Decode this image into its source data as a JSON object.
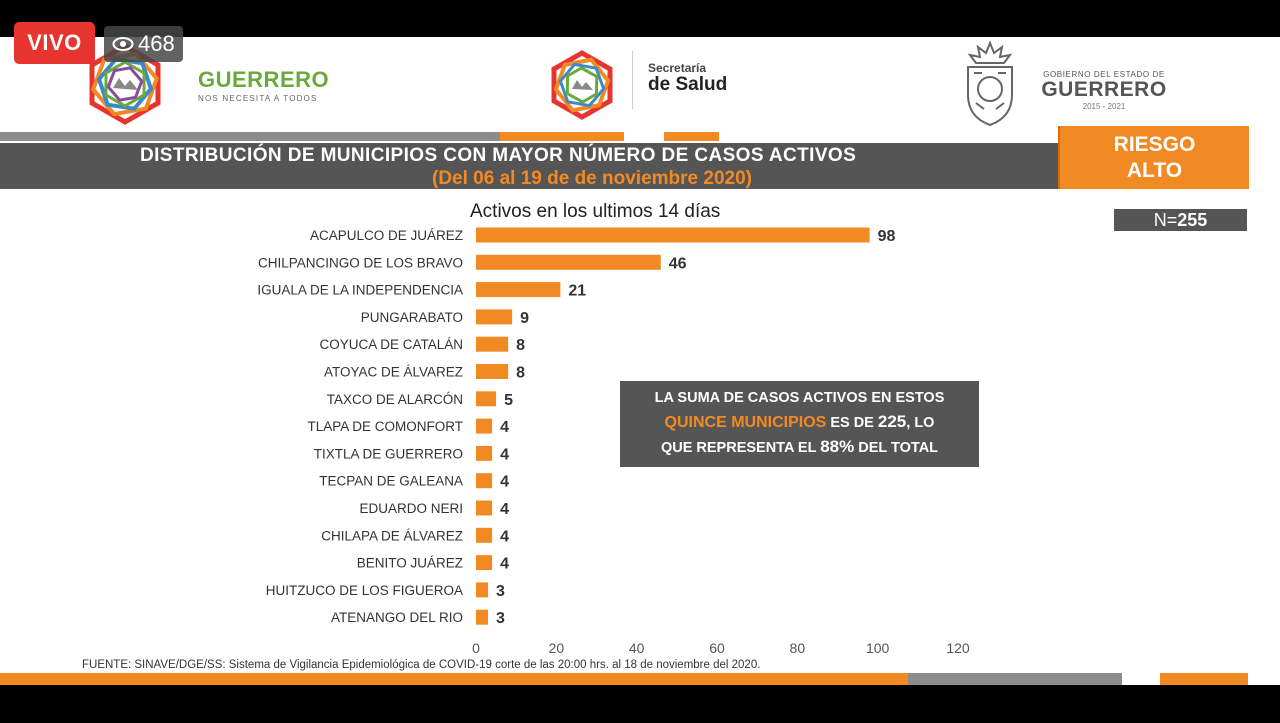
{
  "stream": {
    "live_label": "VIVO",
    "viewers": "468"
  },
  "header": {
    "left_brand_title": "GUERRERO",
    "left_brand_tagline": "NOS NECESITA A TODOS",
    "center_brand_line1": "Secretaría",
    "center_brand_line2": "de Salud",
    "right_brand_line1": "GOBIERNO DEL ESTADO DE",
    "right_brand_line2": "GUERRERO",
    "right_brand_years": "2015 - 2021"
  },
  "slide": {
    "title": "DISTRIBUCIÓN DE MUNICIPIOS CON MAYOR NÚMERO DE  CASOS ACTIVOS",
    "subtitle": "(Del 06 al 19 de de noviembre 2020)",
    "risk_line1": "RIESGO",
    "risk_line2": "ALTO",
    "n_prefix": "N=",
    "n_value": "255",
    "note_line1": "LA SUMA DE CASOS ACTIVOS EN ESTOS",
    "note_highlight": "QUINCE MUNICIPIOS",
    "note_mid": "ES DE",
    "note_total": "225",
    "note_tail1": ", LO",
    "note_line3_pre": "QUE REPRESENTA EL",
    "note_percent": "88%",
    "note_line3_post": "DEL TOTAL",
    "source": "FUENTE: SINAVE/DGE/SS: Sistema de Vigilancia Epidemiológica de COVID-19 corte de las 20:00 hrs. al 18 de noviembre del 2020."
  },
  "colors": {
    "accent": "#f28a24",
    "band": "#555555",
    "live": "#e8342f",
    "brand_green": "#6aaa3a"
  },
  "chart_data": {
    "type": "bar",
    "orientation": "horizontal",
    "title": "Activos en los ultimos 14 días",
    "categories": [
      "ACAPULCO DE JUÁREZ",
      "CHILPANCINGO DE LOS BRAVO",
      "IGUALA DE LA INDEPENDENCIA",
      "PUNGARABATO",
      "COYUCA DE CATALÁN",
      "ATOYAC DE ÁLVAREZ",
      "TAXCO DE ALARCÓN",
      "TLAPA DE COMONFORT",
      "TIXTLA DE GUERRERO",
      "TECPAN DE GALEANA",
      "EDUARDO NERI",
      "CHILAPA DE ÁLVAREZ",
      "BENITO JUÁREZ",
      "HUITZUCO DE LOS FIGUEROA",
      "ATENANGO DEL RIO"
    ],
    "values": [
      98,
      46,
      21,
      9,
      8,
      8,
      5,
      4,
      4,
      4,
      4,
      4,
      4,
      3,
      3
    ],
    "xlim": [
      0,
      120
    ],
    "xticks": [
      0,
      20,
      40,
      60,
      80,
      100,
      120
    ],
    "data_labels": true,
    "grid": false,
    "bar_color": "#f28a24"
  }
}
